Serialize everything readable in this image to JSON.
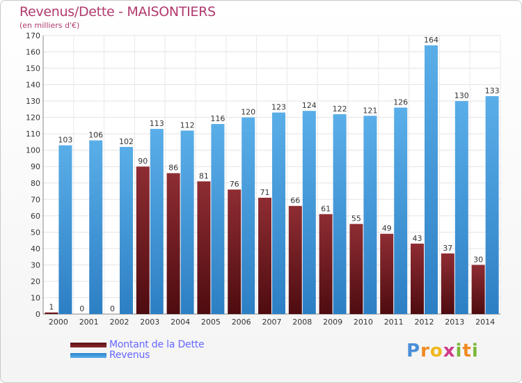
{
  "chart_data": {
    "type": "bar",
    "title": "Revenus/Dette - MAISONTIERS",
    "subtitle": "(en milliers d'€)",
    "categories": [
      "2000",
      "2001",
      "2002",
      "2003",
      "2004",
      "2005",
      "2006",
      "2007",
      "2008",
      "2009",
      "2010",
      "2011",
      "2012",
      "2013",
      "2014"
    ],
    "series": [
      {
        "name": "Montant de la Dette",
        "color": "#7a1f24",
        "values": [
          1,
          0,
          0,
          90,
          86,
          81,
          76,
          71,
          66,
          61,
          55,
          49,
          43,
          37,
          30
        ]
      },
      {
        "name": "Revenus",
        "color": "#3d96dc",
        "values": [
          103,
          106,
          102,
          113,
          112,
          116,
          120,
          123,
          124,
          122,
          121,
          126,
          164,
          130,
          133
        ]
      }
    ],
    "ylim": [
      0,
      170
    ],
    "yticks": [
      0,
      10,
      20,
      30,
      40,
      50,
      60,
      70,
      80,
      90,
      100,
      110,
      120,
      130,
      140,
      150,
      160,
      170
    ],
    "grid": true,
    "legend_position": "bottom-left"
  },
  "brand": {
    "letters": [
      "P",
      "r",
      "o",
      "x",
      "i",
      "t",
      "i"
    ],
    "colors": [
      "#4a8fd8",
      "#f08a24",
      "#f0b81e",
      "#d03a8a",
      "#7ab83a",
      "#f08a24",
      "#7ab83a"
    ]
  }
}
